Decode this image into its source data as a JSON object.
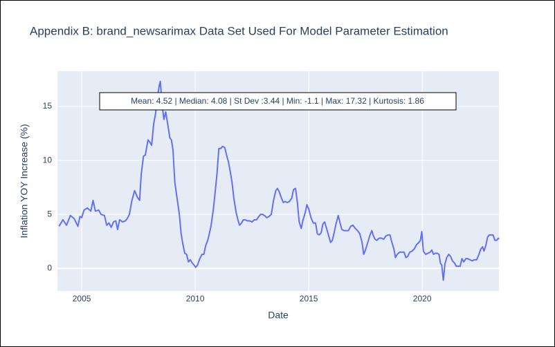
{
  "chart_data": {
    "type": "line",
    "title": "Appendix B: brand_newsarimax Data Set Used For Model Parameter Estimation",
    "annotation": "Mean: 4.52 | Median: 4.08 | St Dev :3.44 | Min: -1.1 | Max: 17.32 | Kurtosis: 1.86",
    "xlabel": "Date",
    "ylabel": "Inflation YOY Increase (%)",
    "xlim": [
      2003.93,
      2023.38
    ],
    "ylim": [
      -2.1,
      18.27
    ],
    "xticks": [
      2005,
      2010,
      2015,
      2020
    ],
    "yticks": [
      0,
      5,
      10,
      15
    ],
    "grid": true,
    "x": [
      2004.0,
      2004.17,
      2004.33,
      2004.5,
      2004.67,
      2004.83,
      2004.92,
      2005.0,
      2005.1,
      2005.25,
      2005.4,
      2005.5,
      2005.6,
      2005.75,
      2005.85,
      2006.0,
      2006.1,
      2006.2,
      2006.3,
      2006.4,
      2006.5,
      2006.58,
      2006.67,
      2006.8,
      2006.92,
      2007.0,
      2007.1,
      2007.2,
      2007.33,
      2007.45,
      2007.55,
      2007.62,
      2007.72,
      2007.8,
      2007.92,
      2008.0,
      2008.08,
      2008.17,
      2008.25,
      2008.33,
      2008.42,
      2008.46,
      2008.55,
      2008.62,
      2008.7,
      2008.8,
      2008.88,
      2008.95,
      2009.02,
      2009.1,
      2009.2,
      2009.3,
      2009.38,
      2009.46,
      2009.54,
      2009.62,
      2009.7,
      2009.78,
      2009.87,
      2009.95,
      2010.02,
      2010.1,
      2010.2,
      2010.3,
      2010.38,
      2010.46,
      2010.55,
      2010.62,
      2010.7,
      2010.8,
      2010.88,
      2010.96,
      2011.04,
      2011.12,
      2011.2,
      2011.3,
      2011.38,
      2011.46,
      2011.54,
      2011.62,
      2011.7,
      2011.8,
      2011.88,
      2011.95,
      2012.04,
      2012.12,
      2012.2,
      2012.3,
      2012.4,
      2012.5,
      2012.6,
      2012.7,
      2012.8,
      2012.88,
      2012.96,
      2013.05,
      2013.15,
      2013.25,
      2013.35,
      2013.45,
      2013.55,
      2013.62,
      2013.7,
      2013.8,
      2013.88,
      2013.96,
      2014.05,
      2014.15,
      2014.25,
      2014.33,
      2014.42,
      2014.5,
      2014.58,
      2014.67,
      2014.75,
      2014.85,
      2014.92,
      2015.0,
      2015.1,
      2015.2,
      2015.3,
      2015.38,
      2015.46,
      2015.55,
      2015.62,
      2015.7,
      2015.8,
      2015.88,
      2015.96,
      2016.04,
      2016.12,
      2016.2,
      2016.3,
      2016.38,
      2016.46,
      2016.55,
      2016.65,
      2016.75,
      2016.85,
      2016.95,
      2017.05,
      2017.15,
      2017.25,
      2017.35,
      2017.42,
      2017.5,
      2017.6,
      2017.7,
      2017.78,
      2017.85,
      2017.92,
      2018.0,
      2018.1,
      2018.2,
      2018.3,
      2018.4,
      2018.5,
      2018.58,
      2018.65,
      2018.75,
      2018.82,
      2018.9,
      2019.0,
      2019.1,
      2019.2,
      2019.28,
      2019.36,
      2019.45,
      2019.55,
      2019.65,
      2019.75,
      2019.85,
      2019.92,
      2019.98,
      2020.05,
      2020.15,
      2020.25,
      2020.35,
      2020.42,
      2020.5,
      2020.58,
      2020.66,
      2020.74,
      2020.8,
      2020.86,
      2020.93,
      2021.0,
      2021.08,
      2021.17,
      2021.25,
      2021.33,
      2021.42,
      2021.5,
      2021.6,
      2021.67,
      2021.75,
      2021.83,
      2021.92,
      2022.0,
      2022.1,
      2022.2,
      2022.3,
      2022.4,
      2022.5,
      2022.58,
      2022.66,
      2022.72,
      2022.8,
      2022.88,
      2022.96,
      2023.05,
      2023.12,
      2023.2,
      2023.28,
      2023.35,
      2023.38
    ],
    "series": [
      {
        "color": "#636efa",
        "values": [
          3.9,
          4.5,
          4.0,
          4.9,
          4.6,
          3.9,
          4.8,
          4.7,
          5.4,
          5.6,
          5.3,
          6.3,
          5.3,
          5.4,
          5.0,
          4.9,
          4.0,
          4.2,
          3.8,
          4.3,
          4.4,
          3.6,
          4.5,
          4.3,
          4.4,
          4.6,
          5.0,
          6.2,
          7.2,
          6.6,
          6.3,
          8.7,
          10.4,
          10.5,
          11.9,
          11.7,
          11.4,
          13.4,
          14.3,
          15.8,
          17.0,
          17.32,
          15.0,
          13.8,
          14.5,
          13.2,
          12.1,
          11.9,
          11.0,
          8.0,
          6.5,
          5.0,
          3.2,
          2.2,
          1.4,
          1.3,
          0.6,
          0.8,
          0.5,
          0.3,
          0.1,
          0.3,
          0.9,
          1.3,
          1.3,
          2.1,
          2.6,
          3.2,
          4.0,
          5.5,
          7.1,
          8.8,
          11.1,
          11.1,
          11.3,
          11.2,
          10.5,
          9.9,
          9.0,
          8.0,
          6.5,
          5.2,
          4.5,
          4.0,
          4.2,
          4.5,
          4.5,
          4.4,
          4.4,
          4.3,
          4.5,
          4.5,
          4.8,
          5.0,
          5.0,
          4.9,
          4.7,
          4.8,
          5.0,
          6.3,
          7.2,
          7.4,
          7.1,
          6.5,
          6.1,
          6.2,
          6.1,
          6.2,
          6.5,
          7.3,
          7.4,
          6.1,
          4.3,
          3.7,
          4.5,
          5.2,
          5.9,
          5.5,
          4.7,
          4.2,
          4.2,
          3.2,
          3.1,
          3.3,
          4.1,
          4.3,
          3.6,
          3.0,
          2.4,
          2.6,
          3.3,
          4.1,
          4.9,
          4.2,
          3.6,
          3.5,
          3.5,
          3.5,
          3.9,
          4.0,
          3.7,
          3.5,
          3.2,
          2.4,
          1.3,
          1.7,
          2.4,
          3.1,
          3.5,
          3.0,
          2.7,
          2.6,
          2.8,
          2.8,
          2.7,
          3.0,
          3.1,
          3.1,
          2.5,
          1.8,
          1.0,
          1.3,
          1.5,
          1.5,
          1.5,
          1.0,
          1.1,
          1.5,
          1.6,
          1.8,
          2.2,
          2.4,
          2.6,
          3.4,
          1.6,
          1.3,
          1.4,
          1.5,
          1.7,
          1.3,
          1.4,
          1.4,
          1.3,
          0.5,
          0.3,
          -1.1,
          0.4,
          1.0,
          1.3,
          1.1,
          0.7,
          0.5,
          0.2,
          0.2,
          0.2,
          0.9,
          0.6,
          0.9,
          0.9,
          0.8,
          0.7,
          0.8,
          0.8,
          1.3,
          1.8,
          2.0,
          1.6,
          2.1,
          2.9,
          3.1,
          3.1,
          3.1,
          2.6,
          2.6,
          2.8,
          2.7
        ]
      }
    ]
  }
}
